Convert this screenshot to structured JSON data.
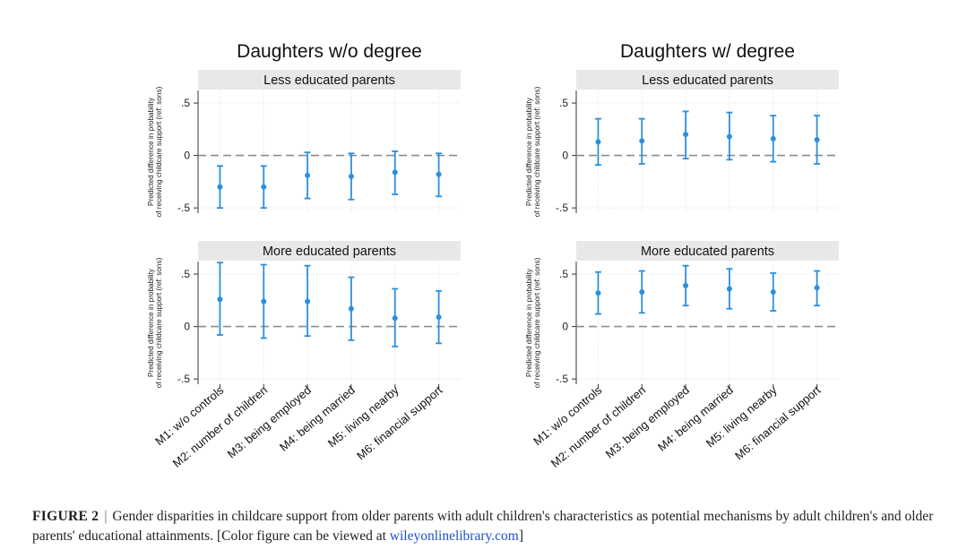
{
  "chart_data": {
    "type": "errorbar",
    "y_ticks": [
      0.5,
      0,
      -0.5
    ],
    "y_tick_labels": [
      ".5",
      "0",
      "-.5"
    ],
    "ylim": [
      -0.55,
      0.62
    ],
    "ylabel_line1": "Predicted difference in probability",
    "ylabel_line2": "of receiving childcare support (ref: sons)",
    "categories": [
      "M1: w/o controls",
      "M2: number of children",
      "M3: being employed",
      "M4: being married",
      "M5: living nearby",
      "M6: financial support"
    ],
    "columns": [
      {
        "title": "Daughters w/o degree",
        "panels": [
          {
            "title": "Less educated parents",
            "estimates": [
              -0.3,
              -0.3,
              -0.19,
              -0.2,
              -0.16,
              -0.18
            ],
            "lower": [
              -0.5,
              -0.5,
              -0.41,
              -0.42,
              -0.37,
              -0.39
            ],
            "upper": [
              -0.1,
              -0.1,
              0.03,
              0.02,
              0.04,
              0.02
            ]
          },
          {
            "title": "More educated parents",
            "estimates": [
              0.26,
              0.24,
              0.24,
              0.17,
              0.08,
              0.09
            ],
            "lower": [
              -0.08,
              -0.11,
              -0.09,
              -0.13,
              -0.19,
              -0.16
            ],
            "upper": [
              0.61,
              0.59,
              0.58,
              0.47,
              0.36,
              0.34
            ]
          }
        ]
      },
      {
        "title": "Daughters w/ degree",
        "panels": [
          {
            "title": "Less educated parents",
            "estimates": [
              0.13,
              0.14,
              0.2,
              0.18,
              0.16,
              0.15
            ],
            "lower": [
              -0.09,
              -0.08,
              -0.03,
              -0.04,
              -0.06,
              -0.08
            ],
            "upper": [
              0.35,
              0.35,
              0.42,
              0.41,
              0.38,
              0.38
            ]
          },
          {
            "title": "More educated parents",
            "estimates": [
              0.32,
              0.33,
              0.39,
              0.36,
              0.33,
              0.37
            ],
            "lower": [
              0.12,
              0.13,
              0.2,
              0.17,
              0.15,
              0.2
            ],
            "upper": [
              0.52,
              0.53,
              0.58,
              0.55,
              0.51,
              0.53
            ]
          }
        ]
      }
    ],
    "colors": {
      "series": "#2b8fde",
      "strip": "#e8e8e8",
      "reference": "#8c8c8c",
      "grid": "#dddddd"
    }
  },
  "caption": {
    "label": "FIGURE 2",
    "separator": "|",
    "text": "Gender disparities in childcare support from older parents with adult children's characteristics as potential mechanisms by adult children's and older parents' educational attainments. [Color figure can be viewed at ",
    "link": "wileyonlinelibrary.com",
    "closing": "]"
  }
}
